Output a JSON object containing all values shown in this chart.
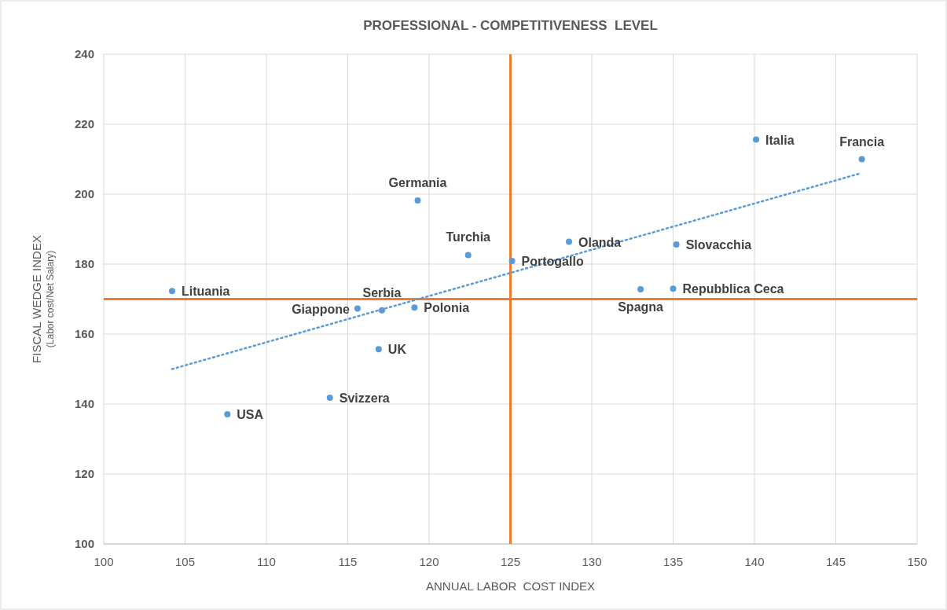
{
  "chart_data": {
    "type": "scatter",
    "title": "PROFESSIONAL - COMPETITIVENESS  LEVEL",
    "xlabel": "ANNUAL LABOR  COST INDEX",
    "ylabel": "FISCAL WEDGE INDEX\n(Labor cost/Net Salary)",
    "xlim": [
      100,
      150
    ],
    "xticks": [
      100,
      105,
      110,
      115,
      120,
      125,
      130,
      135,
      140,
      145,
      150
    ],
    "ylim": [
      100,
      240
    ],
    "yticks": [
      100,
      120,
      140,
      160,
      180,
      200,
      220,
      240
    ],
    "grid": true,
    "series": [
      {
        "color": "#5b9bd5",
        "marker": "circle",
        "x": [
          104.2,
          107.6,
          113.9,
          115.6,
          117.1,
          116.9,
          119.1,
          119.3,
          122.4,
          125.1,
          128.6,
          135.2,
          133.0,
          135.0,
          140.1,
          146.6
        ],
        "values": [
          172.3,
          137.1,
          141.8,
          167.3,
          166.8,
          155.7,
          167.6,
          198.2,
          182.6,
          180.9,
          186.4,
          185.6,
          172.8,
          173.0,
          215.6,
          210.0
        ]
      },
      {
        "type": "line",
        "color": "#5b9bd5",
        "line_style": "dotted",
        "marker": "none",
        "x": [
          104.2,
          146.4
        ],
        "values": [
          150.0,
          205.8
        ]
      }
    ],
    "ref_lines": [
      {
        "axis": "x",
        "value": 125,
        "color": "#ed7d31"
      },
      {
        "axis": "y",
        "value": 170,
        "color": "#ed7d31"
      }
    ],
    "annotations": [
      {
        "text": "Lituania",
        "x": 104.2,
        "y": 172.3
      },
      {
        "text": "USA",
        "x": 107.6,
        "y": 137.1
      },
      {
        "text": "Svizzera",
        "x": 113.9,
        "y": 141.8
      },
      {
        "text": "Giappone",
        "x": 115.6,
        "y": 167.3
      },
      {
        "text": "Serbia",
        "x": 117.1,
        "y": 166.8
      },
      {
        "text": "UK",
        "x": 116.9,
        "y": 155.7
      },
      {
        "text": "Polonia",
        "x": 119.1,
        "y": 167.6
      },
      {
        "text": "Germania",
        "x": 119.3,
        "y": 198.2
      },
      {
        "text": "Turchia",
        "x": 122.4,
        "y": 182.6
      },
      {
        "text": "Portogallo",
        "x": 125.1,
        "y": 180.9
      },
      {
        "text": "Olanda",
        "x": 128.6,
        "y": 186.4
      },
      {
        "text": "Slovacchia",
        "x": 135.2,
        "y": 185.6
      },
      {
        "text": "Spagna",
        "x": 133.0,
        "y": 172.8
      },
      {
        "text": "Repubblica Ceca",
        "x": 135.0,
        "y": 173.0
      },
      {
        "text": "Italia",
        "x": 140.1,
        "y": 215.6
      },
      {
        "text": "Francia",
        "x": 146.6,
        "y": 210.0
      }
    ]
  }
}
